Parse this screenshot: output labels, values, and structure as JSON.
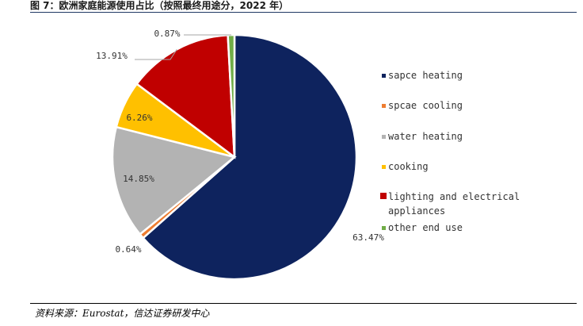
{
  "figure": {
    "title": "图 7：欧洲家庭能源使用占比（按照最终用途分，2022 年）",
    "source": "资料来源：Eurostat，信达证券研发中心"
  },
  "chart_data": {
    "type": "pie",
    "title": "",
    "start_angle_deg": 0,
    "direction": "clockwise",
    "legend_position": "right",
    "slices": [
      {
        "name": "sapce heating",
        "value": 63.47,
        "label": "63.47%",
        "color": "#0e235e"
      },
      {
        "name": "spcae cooling",
        "value": 0.64,
        "label": "0.64%",
        "color": "#ee7d31"
      },
      {
        "name": "water heating",
        "value": 14.85,
        "label": "14.85%",
        "color": "#b3b3b3"
      },
      {
        "name": "cooking",
        "value": 6.26,
        "label": "6.26%",
        "color": "#ffc000"
      },
      {
        "name": "lighting and electrical appliances",
        "value": 13.91,
        "label": "13.91%",
        "color": "#c00000"
      },
      {
        "name": "other end use",
        "value": 0.87,
        "label": "0.87%",
        "color": "#70ad47"
      }
    ],
    "legend_lines": [
      [
        "sapce heating"
      ],
      [
        "spcae cooling"
      ],
      [
        "water heating"
      ],
      [
        "cooking"
      ],
      [
        "lighting and electrical",
        "appliances"
      ],
      [
        "other end use"
      ]
    ]
  }
}
